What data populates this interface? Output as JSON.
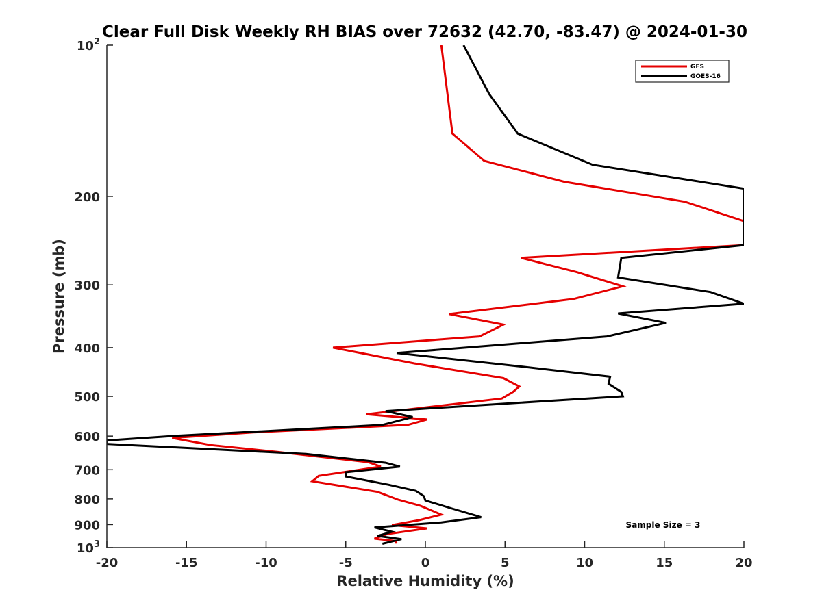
{
  "chart_data": {
    "type": "line",
    "title": "Clear Full Disk Weekly RH BIAS over 72632 (42.70, -83.47) @ 2024-01-30",
    "xlabel": "Relative Humidity (%)",
    "ylabel": "Pressure (mb)",
    "xlim": [
      -20,
      20
    ],
    "ylim": [
      100,
      1000
    ],
    "y_scale": "log",
    "y_reversed": true,
    "grid": false,
    "x_ticks": [
      "-20",
      "-15",
      "-10",
      "-5",
      "0",
      "5",
      "10",
      "15",
      "20"
    ],
    "y_ticks": [
      {
        "value": 100,
        "label": "10",
        "sup": "2"
      },
      {
        "value": 200,
        "label": "200",
        "sup": ""
      },
      {
        "value": 300,
        "label": "300",
        "sup": ""
      },
      {
        "value": 400,
        "label": "400",
        "sup": ""
      },
      {
        "value": 500,
        "label": "500",
        "sup": ""
      },
      {
        "value": 600,
        "label": "600",
        "sup": ""
      },
      {
        "value": 700,
        "label": "700",
        "sup": ""
      },
      {
        "value": 800,
        "label": "800",
        "sup": ""
      },
      {
        "value": 900,
        "label": "900",
        "sup": ""
      },
      {
        "value": 1000,
        "label": "10",
        "sup": "3"
      }
    ],
    "legend_position": "top-right",
    "annotation": "Sample Size = 3",
    "series": [
      {
        "name": "GFS",
        "color": "#e50000",
        "points": [
          [
            1.0,
            100
          ],
          [
            1.7,
            150
          ],
          [
            3.7,
            170
          ],
          [
            8.7,
            187
          ],
          [
            16.3,
            205
          ],
          [
            20.0,
            224
          ],
          [
            20.0,
            250
          ],
          [
            6.0,
            265
          ],
          [
            9.5,
            283
          ],
          [
            12.4,
            302
          ],
          [
            9.3,
            320
          ],
          [
            1.5,
            343
          ],
          [
            4.9,
            360
          ],
          [
            3.4,
            380
          ],
          [
            -5.8,
            400
          ],
          [
            -0.7,
            430
          ],
          [
            4.9,
            460
          ],
          [
            5.9,
            478
          ],
          [
            5.5,
            490
          ],
          [
            4.8,
            505
          ],
          [
            -3.7,
            543
          ],
          [
            0.1,
            556
          ],
          [
            -1.1,
            570
          ],
          [
            -10.8,
            590
          ],
          [
            -15.9,
            605
          ],
          [
            -13.5,
            625
          ],
          [
            -9.3,
            645
          ],
          [
            -3.6,
            676
          ],
          [
            -2.8,
            690
          ],
          [
            -6.7,
            720
          ],
          [
            -7.1,
            738
          ],
          [
            -3.0,
            775
          ],
          [
            -1.7,
            803
          ],
          [
            -0.3,
            826
          ],
          [
            1.0,
            860
          ],
          [
            -0.4,
            882
          ],
          [
            -2.1,
            902
          ],
          [
            0.1,
            916
          ],
          [
            -2.4,
            940
          ],
          [
            -3.2,
            960
          ],
          [
            -1.9,
            970
          ],
          [
            -1.8,
            981
          ]
        ]
      },
      {
        "name": "GOES-16",
        "color": "#000000",
        "points": [
          [
            2.4,
            100
          ],
          [
            4.0,
            125
          ],
          [
            5.8,
            150
          ],
          [
            10.5,
            173
          ],
          [
            20.0,
            193
          ],
          [
            20.0,
            250
          ],
          [
            12.3,
            265
          ],
          [
            12.1,
            290
          ],
          [
            17.9,
            310
          ],
          [
            20.0,
            327
          ],
          [
            12.1,
            342
          ],
          [
            15.1,
            357
          ],
          [
            11.4,
            380
          ],
          [
            -1.8,
            410
          ],
          [
            5.7,
            435
          ],
          [
            11.6,
            457
          ],
          [
            11.5,
            472
          ],
          [
            12.3,
            490
          ],
          [
            12.4,
            500
          ],
          [
            -2.5,
            535
          ],
          [
            -0.8,
            550
          ],
          [
            -2.7,
            570
          ],
          [
            -16.0,
            600
          ],
          [
            -20.0,
            612
          ],
          [
            -20.0,
            622
          ],
          [
            -7.5,
            651
          ],
          [
            -2.5,
            678
          ],
          [
            -1.6,
            690
          ],
          [
            -5.0,
            708
          ],
          [
            -5.0,
            722
          ],
          [
            -2.3,
            750
          ],
          [
            -0.6,
            771
          ],
          [
            -0.1,
            790
          ],
          [
            0.0,
            806
          ],
          [
            1.6,
            835
          ],
          [
            3.5,
            870
          ],
          [
            1.0,
            891
          ],
          [
            -3.2,
            912
          ],
          [
            -2.1,
            930
          ],
          [
            -3.0,
            948
          ],
          [
            -1.5,
            962
          ],
          [
            -2.7,
            983
          ]
        ]
      }
    ]
  }
}
